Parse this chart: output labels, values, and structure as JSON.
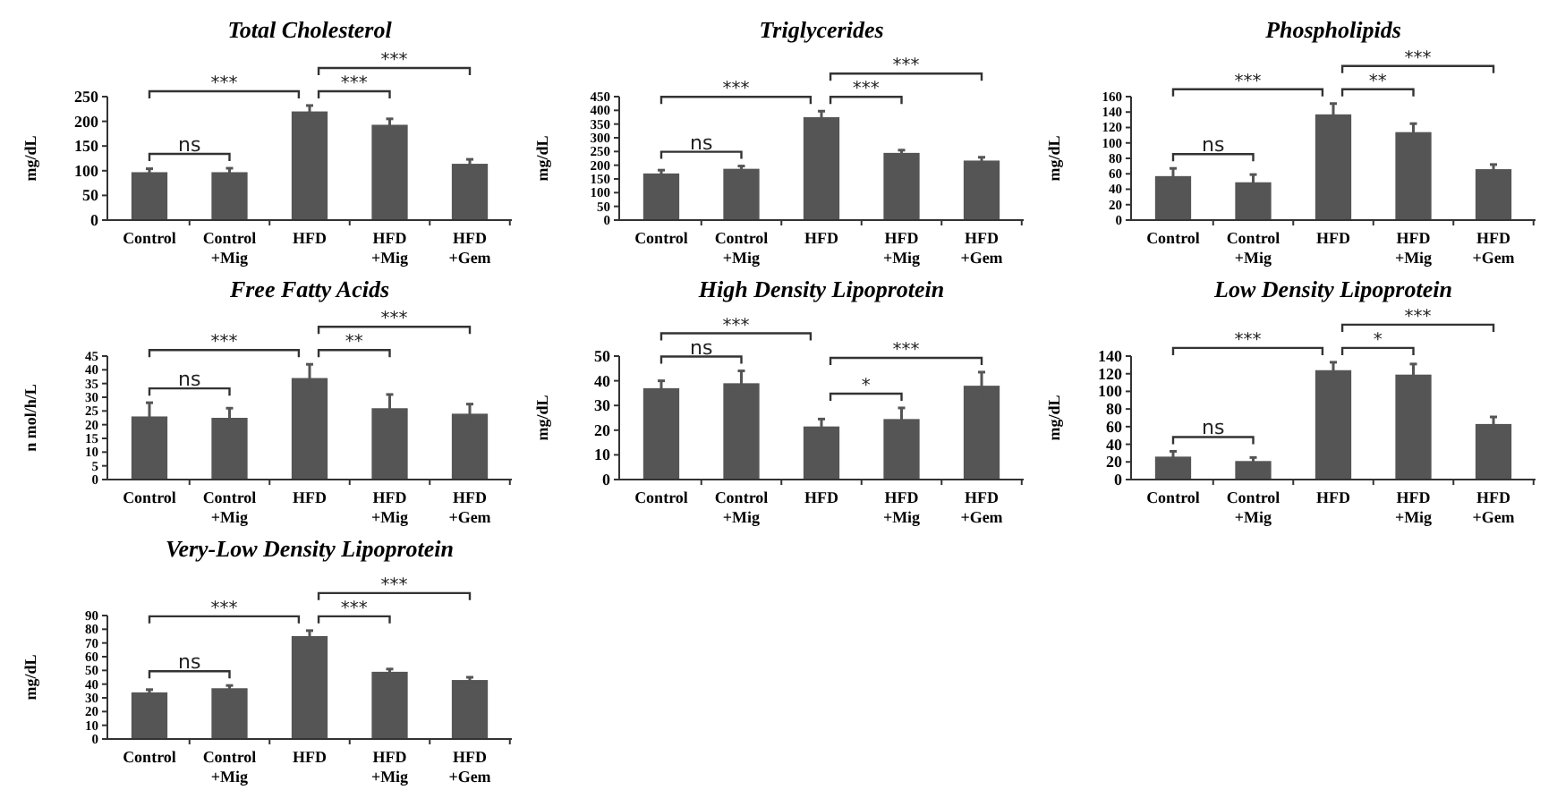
{
  "chart_data": [
    {
      "type": "bar",
      "title": "Total Cholesterol",
      "ylabel": "mg/dL",
      "categories": [
        "Control",
        "Control +Mig",
        "HFD",
        "HFD +Mig",
        "HFD +Gem"
      ],
      "values": [
        97,
        97,
        220,
        193,
        114
      ],
      "errors": [
        7,
        8,
        12,
        12,
        9
      ],
      "color": "#555555",
      "ylim": [
        0,
        250
      ],
      "yticks": [
        0,
        50,
        100,
        150,
        200,
        250
      ],
      "annotations": [
        "ns",
        "***",
        "***",
        "***"
      ]
    },
    {
      "type": "bar",
      "title": "Triglycerides",
      "ylabel": "mg/dL",
      "categories": [
        "Control",
        "Control +Mig",
        "HFD",
        "HFD +Mig",
        "HFD +Gem"
      ],
      "values": [
        170,
        187,
        375,
        245,
        217
      ],
      "errors": [
        12,
        10,
        22,
        10,
        12
      ],
      "color": "#555555",
      "ylim": [
        0,
        450
      ],
      "yticks": [
        0,
        50,
        100,
        150,
        200,
        250,
        300,
        350,
        400,
        450
      ],
      "annotations": [
        "ns",
        "***",
        "***",
        "***"
      ]
    },
    {
      "type": "bar",
      "title": "Phospholipids",
      "ylabel": "mg/dL",
      "categories": [
        "Control",
        "Control +Mig",
        "HFD",
        "HFD +Mig",
        "HFD +Gem"
      ],
      "values": [
        57,
        49,
        137,
        114,
        66
      ],
      "errors": [
        10,
        10,
        14,
        11,
        6
      ],
      "color": "#555555",
      "ylim": [
        0,
        160
      ],
      "yticks": [
        0,
        20,
        40,
        60,
        80,
        100,
        120,
        140,
        160
      ],
      "annotations": [
        "ns",
        "***",
        "**",
        "***"
      ]
    },
    {
      "type": "bar",
      "title": "Free Fatty Acids",
      "ylabel": "n mol/h/L",
      "categories": [
        "Control",
        "Control +Mig",
        "HFD",
        "HFD +Mig",
        "HFD +Gem"
      ],
      "values": [
        23,
        22.5,
        37,
        26,
        24
      ],
      "errors": [
        5,
        3.5,
        5,
        5,
        3.5
      ],
      "color": "#555555",
      "ylim": [
        0,
        45
      ],
      "yticks": [
        0,
        5,
        10,
        15,
        20,
        25,
        30,
        35,
        40,
        45
      ],
      "annotations": [
        "ns",
        "***",
        "**",
        "***"
      ]
    },
    {
      "type": "bar",
      "title": "High Density Lipoprotein",
      "ylabel": "mg/dL",
      "categories": [
        "Control",
        "Control +Mig",
        "HFD",
        "HFD +Mig",
        "HFD +Gem"
      ],
      "values": [
        37,
        39,
        21.5,
        24.5,
        38
      ],
      "errors": [
        3,
        5,
        3,
        4.5,
        5.5
      ],
      "color": "#555555",
      "ylim": [
        0,
        50
      ],
      "yticks": [
        0,
        10,
        20,
        30,
        40,
        50
      ],
      "annotations": [
        "ns",
        "***",
        "*",
        "***"
      ]
    },
    {
      "type": "bar",
      "title": "Low Density Lipoprotein",
      "ylabel": "mg/dL",
      "categories": [
        "Control",
        "Control +Mig",
        "HFD",
        "HFD +Mig",
        "HFD +Gem"
      ],
      "values": [
        26,
        21,
        124,
        119,
        63
      ],
      "errors": [
        6,
        4,
        9,
        12,
        8
      ],
      "color": "#555555",
      "ylim": [
        0,
        140
      ],
      "yticks": [
        0,
        20,
        40,
        60,
        80,
        100,
        120,
        140
      ],
      "annotations": [
        "ns",
        "***",
        "*",
        "***"
      ]
    },
    {
      "type": "bar",
      "title": "Very-Low Density Lipoprotein",
      "ylabel": "mg/dL",
      "categories": [
        "Control",
        "Control +Mig",
        "HFD",
        "HFD +Mig",
        "HFD +Gem"
      ],
      "values": [
        34,
        37,
        75,
        49,
        43
      ],
      "errors": [
        2,
        2,
        4,
        2,
        2
      ],
      "color": "#555555",
      "ylim": [
        0,
        90
      ],
      "yticks": [
        0,
        10,
        20,
        30,
        40,
        50,
        60,
        70,
        80,
        90
      ],
      "annotations": [
        "ns",
        "***",
        "***",
        "***"
      ]
    }
  ]
}
